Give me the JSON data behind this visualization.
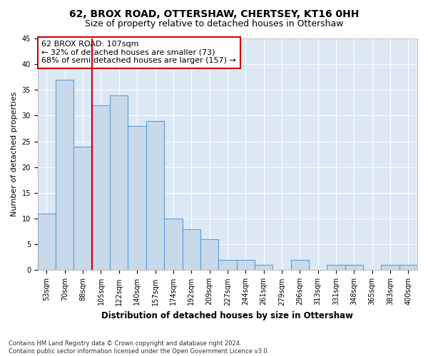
{
  "title1": "62, BROX ROAD, OTTERSHAW, CHERTSEY, KT16 0HH",
  "title2": "Size of property relative to detached houses in Ottershaw",
  "xlabel": "Distribution of detached houses by size in Ottershaw",
  "ylabel": "Number of detached properties",
  "footnote": "Contains HM Land Registry data © Crown copyright and database right 2024.\nContains public sector information licensed under the Open Government Licence v3.0.",
  "categories": [
    "53sqm",
    "70sqm",
    "88sqm",
    "105sqm",
    "122sqm",
    "140sqm",
    "157sqm",
    "174sqm",
    "192sqm",
    "209sqm",
    "227sqm",
    "244sqm",
    "261sqm",
    "279sqm",
    "296sqm",
    "313sqm",
    "331sqm",
    "348sqm",
    "365sqm",
    "383sqm",
    "400sqm"
  ],
  "values": [
    11,
    37,
    24,
    32,
    34,
    28,
    29,
    10,
    8,
    6,
    2,
    2,
    1,
    0,
    2,
    0,
    1,
    1,
    0,
    1,
    1
  ],
  "bar_color": "#c8daea",
  "bar_edge_color": "#5b9bd5",
  "vline_x": 2.5,
  "vline_color": "#cc0000",
  "annotation_text": "62 BROX ROAD: 107sqm\n← 32% of detached houses are smaller (73)\n68% of semi-detached houses are larger (157) →",
  "annotation_box_color": "#ffffff",
  "annotation_box_edgecolor": "#cc0000",
  "ylim": [
    0,
    45
  ],
  "yticks": [
    0,
    5,
    10,
    15,
    20,
    25,
    30,
    35,
    40,
    45
  ],
  "plot_bg_color": "#dce9f5",
  "title1_fontsize": 10,
  "title2_fontsize": 9,
  "xlabel_fontsize": 8.5,
  "ylabel_fontsize": 8,
  "tick_fontsize": 7,
  "annot_fontsize": 8
}
